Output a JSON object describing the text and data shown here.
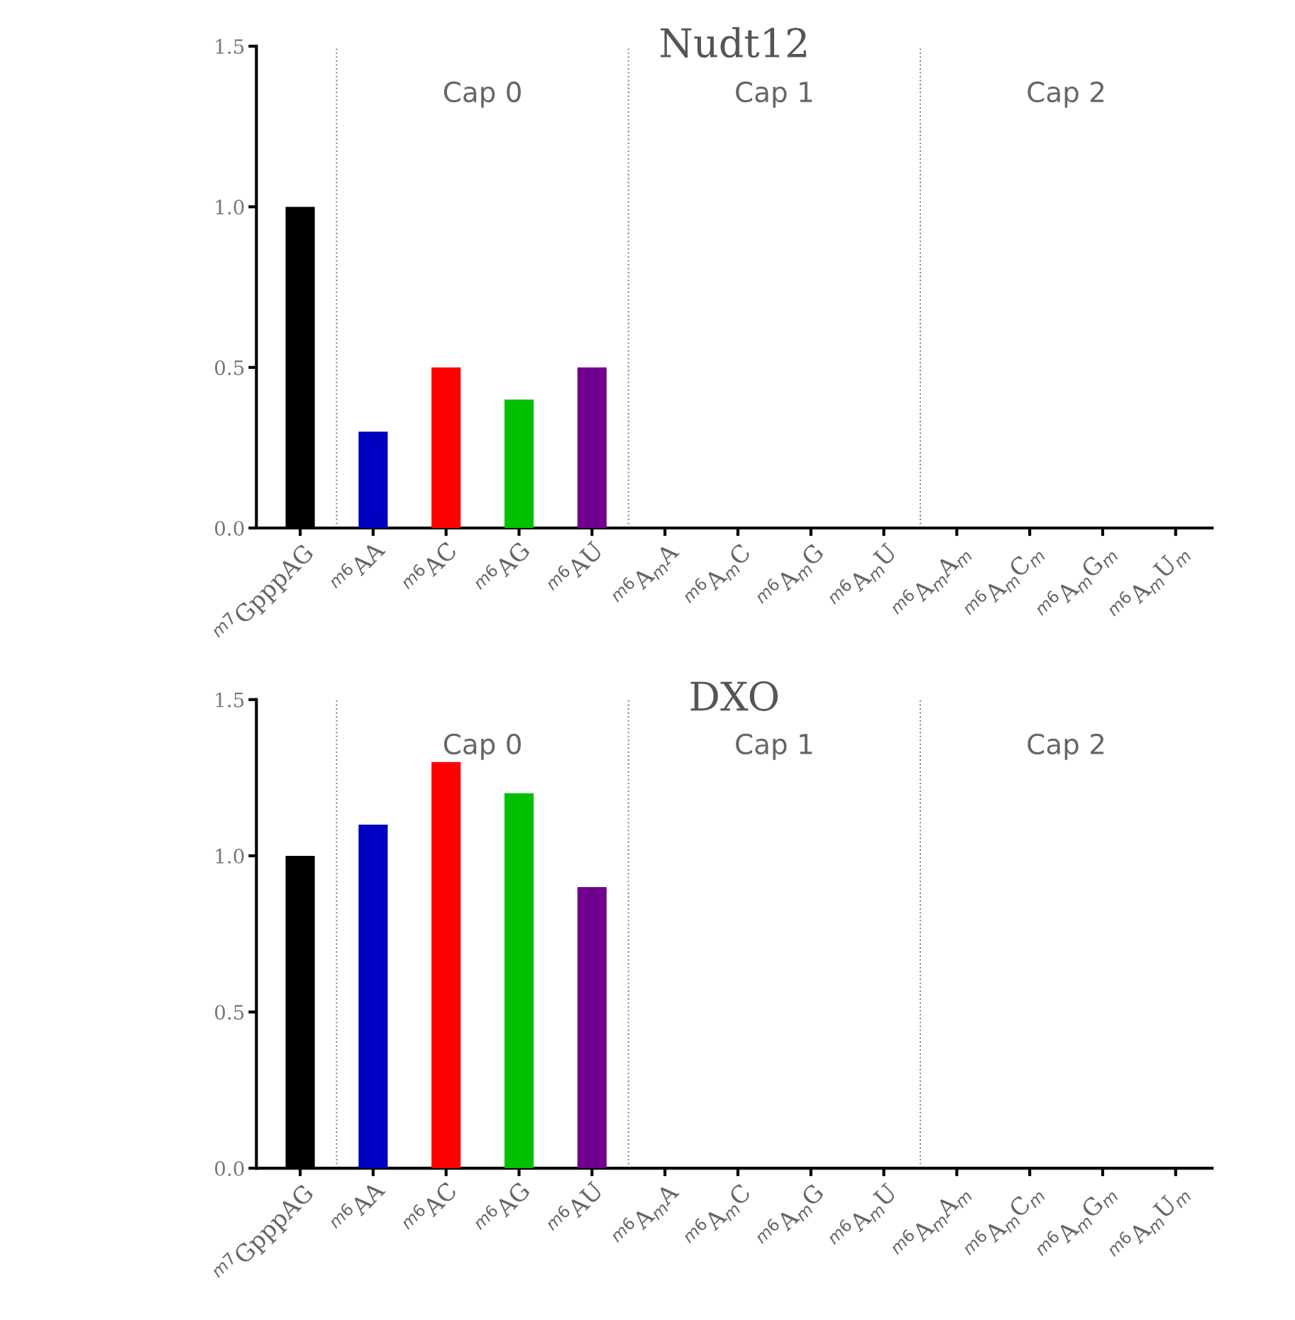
{
  "chart_data": [
    {
      "type": "bar",
      "title": "Nudt12",
      "categories": [
        "$^{m7}$GpppAG",
        "$^{m6}$AA",
        "$^{m6}$AC",
        "$^{m6}$AG",
        "$^{m6}$AU",
        "$^{m6}$A$_{m}$A",
        "$^{m6}$A$_{m}$C",
        "$^{m6}$A$_{m}$G",
        "$^{m6}$A$_{m}$U",
        "$^{m6}$A$_{m}$A$_{m}$",
        "$^{m6}$A$_{m}$C$_{m}$",
        "$^{m6}$A$_{m}$G$_{m}$",
        "$^{m6}$A$_{m}$U$_{m}$"
      ],
      "values": [
        1.0,
        0.3,
        0.5,
        0.4,
        0.5,
        0,
        0,
        0,
        0,
        0,
        0,
        0,
        0
      ],
      "colors": [
        "#000000",
        "#0000c0",
        "#ff0000",
        "#00c000",
        "#700090",
        "#000000",
        "#000000",
        "#000000",
        "#000000",
        "#000000",
        "#000000",
        "#000000",
        "#000000"
      ],
      "ylim": [
        0,
        1.5
      ],
      "yticks": [
        {
          "value": 0,
          "label": "0.0"
        },
        {
          "value": 0.5,
          "label": "0.5"
        },
        {
          "value": 1,
          "label": "1.0"
        },
        {
          "value": 1.5,
          "label": "1.5"
        }
      ],
      "annotations": [
        "Cap 0",
        "Cap 1",
        "Cap 2"
      ],
      "grid": false,
      "legend": false
    },
    {
      "type": "bar",
      "title": "DXO",
      "categories": [
        "$^{m7}$GpppAG",
        "$^{m6}$AA",
        "$^{m6}$AC",
        "$^{m6}$AG",
        "$^{m6}$AU",
        "$^{m6}$A$_{m}$A",
        "$^{m6}$A$_{m}$C",
        "$^{m6}$A$_{m}$G",
        "$^{m6}$A$_{m}$U",
        "$^{m6}$A$_{m}$A$_{m}$",
        "$^{m6}$A$_{m}$C$_{m}$",
        "$^{m6}$A$_{m}$G$_{m}$",
        "$^{m6}$A$_{m}$U$_{m}$"
      ],
      "values": [
        1.0,
        1.1,
        1.3,
        1.2,
        0.9,
        0,
        0,
        0,
        0,
        0,
        0,
        0,
        0
      ],
      "colors": [
        "#000000",
        "#0000c0",
        "#ff0000",
        "#00c000",
        "#700090",
        "#000000",
        "#000000",
        "#000000",
        "#000000",
        "#000000",
        "#000000",
        "#000000",
        "#000000"
      ],
      "ylim": [
        0,
        1.5
      ],
      "yticks": [
        {
          "value": 0,
          "label": "0.0"
        },
        {
          "value": 0.5,
          "label": "0.5"
        },
        {
          "value": 1,
          "label": "1.0"
        },
        {
          "value": 1.5,
          "label": "1.5"
        }
      ],
      "annotations": [
        "Cap 0",
        "Cap 1",
        "Cap 2"
      ],
      "grid": false,
      "legend": false
    }
  ]
}
